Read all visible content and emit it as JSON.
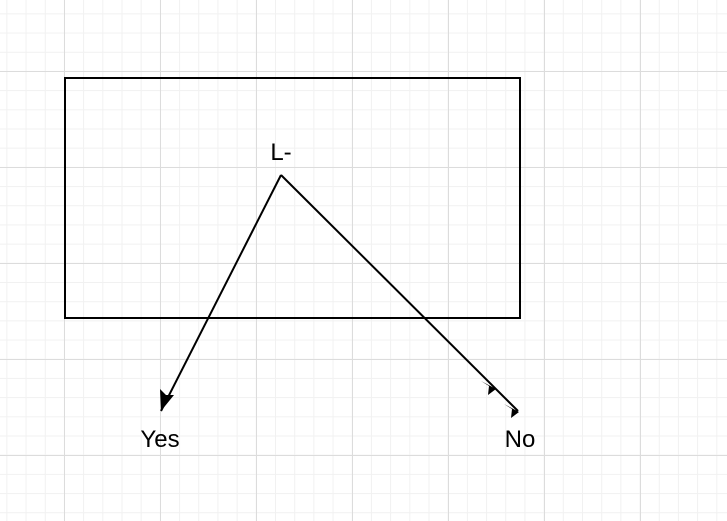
{
  "diagram": {
    "decision": {
      "label": "L-"
    },
    "branches": [
      {
        "label": "Yes"
      },
      {
        "label": "No"
      }
    ]
  },
  "colors": {
    "stroke": "#000000",
    "grid_major": "#dcdcdc",
    "grid_minor": "#f1f1f1",
    "background": "#ffffff"
  }
}
